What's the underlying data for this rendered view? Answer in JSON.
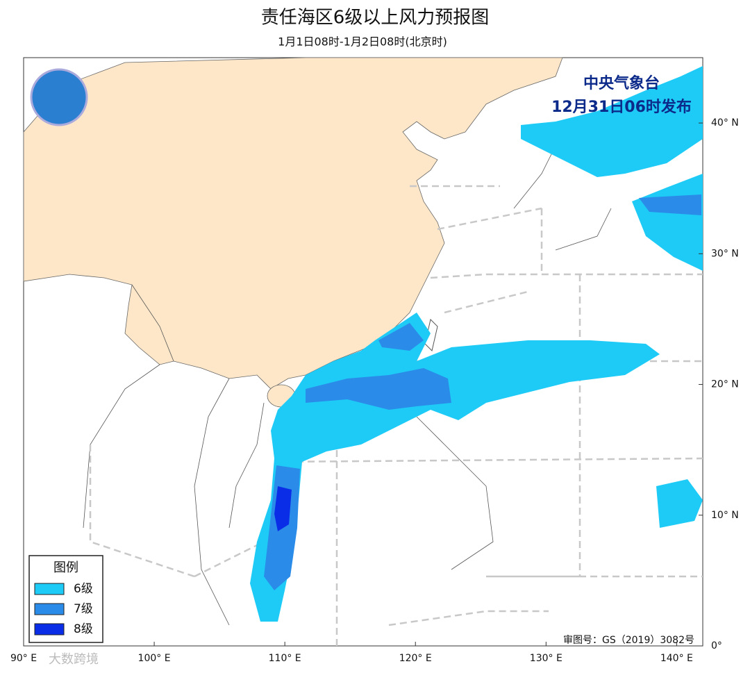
{
  "header": {
    "title": "责任海区6级以上风力预报图",
    "subtitle": "1月1日08时-1月2日08时(北京时)"
  },
  "issuer": {
    "agency": "中央气象台",
    "issued": "12月31日06时发布"
  },
  "map": {
    "lon_range": [
      90,
      142
    ],
    "lat_range": [
      0,
      45
    ],
    "lon_ticks": [
      {
        "value": 90,
        "label": "90° E"
      },
      {
        "value": 100,
        "label": "100° E"
      },
      {
        "value": 110,
        "label": "110° E"
      },
      {
        "value": 120,
        "label": "120° E"
      },
      {
        "value": 130,
        "label": "130° E"
      },
      {
        "value": 140,
        "label": "140° E"
      }
    ],
    "lat_ticks": [
      {
        "value": 0,
        "label": "0°"
      },
      {
        "value": 10,
        "label": "10° N"
      },
      {
        "value": 20,
        "label": "20° N"
      },
      {
        "value": 30,
        "label": "30° N"
      },
      {
        "value": 40,
        "label": "40° N"
      }
    ]
  },
  "legend": {
    "title": "图例",
    "items": [
      {
        "label": "6级",
        "color": "#1ecbf6"
      },
      {
        "label": "7级",
        "color": "#2a8ce8"
      },
      {
        "label": "8级",
        "color": "#0a2ee8"
      }
    ]
  },
  "footer": {
    "review_number": "审图号：GS（2019）3082号",
    "watermark": "大数跨境"
  }
}
